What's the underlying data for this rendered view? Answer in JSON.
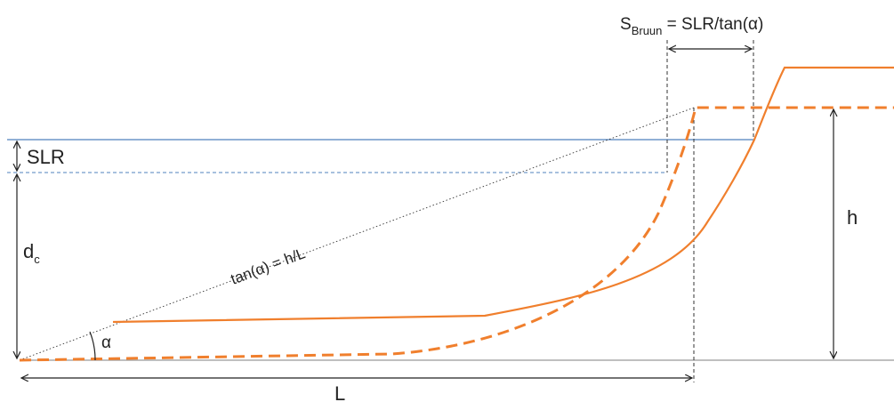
{
  "labels": {
    "s_bruun_main": "S",
    "s_bruun_sub": "Bruun",
    "s_bruun_rest": " = SLR/tan(α)",
    "slr": "SLR",
    "dc_main": "d",
    "dc_sub": "c",
    "tan_alpha": "tan(α) = h/L",
    "alpha": "α",
    "h": "h",
    "L": "L"
  },
  "colors": {
    "profile": "#f07f2d",
    "water": "#4f81bd",
    "annotation": "#222222"
  }
}
